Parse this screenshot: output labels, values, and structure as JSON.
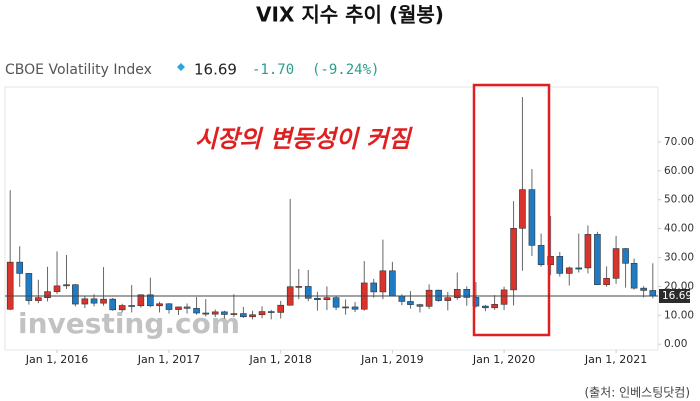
{
  "chart_data": {
    "type": "candlestick",
    "title": "VIX 지수 추이 (월봉)",
    "instrument": "CBOE Volatility Index",
    "price": "16.69",
    "change": "-1.70",
    "change_pct": "(-9.24%)",
    "annotation": "시장의 변동성이 커짐",
    "watermark": "investing.com",
    "source": "(출처: 인베스팅닷컴)",
    "last_value": 16.69,
    "up_color": "#d9342b",
    "down_color": "#1f7cc4",
    "x": [
      "2015-08-01",
      "2015-09-01",
      "2015-10-01",
      "2015-11-01",
      "2015-12-01",
      "2016-01-01",
      "2016-02-01",
      "2016-03-01",
      "2016-04-01",
      "2016-05-01",
      "2016-06-01",
      "2016-07-01",
      "2016-08-01",
      "2016-09-01",
      "2016-10-01",
      "2016-11-01",
      "2016-12-01",
      "2017-01-01",
      "2017-02-01",
      "2017-03-01",
      "2017-04-01",
      "2017-05-01",
      "2017-06-01",
      "2017-07-01",
      "2017-08-01",
      "2017-09-01",
      "2017-10-01",
      "2017-11-01",
      "2017-12-01",
      "2018-01-01",
      "2018-02-01",
      "2018-03-01",
      "2018-04-01",
      "2018-05-01",
      "2018-06-01",
      "2018-07-01",
      "2018-08-01",
      "2018-09-01",
      "2018-10-01",
      "2018-11-01",
      "2018-12-01",
      "2019-01-01",
      "2019-02-01",
      "2019-03-01",
      "2019-04-01",
      "2019-05-01",
      "2019-06-01",
      "2019-07-01",
      "2019-08-01",
      "2019-09-01",
      "2019-10-01",
      "2019-11-01",
      "2019-12-01",
      "2020-01-01",
      "2020-02-01",
      "2020-03-01",
      "2020-04-01",
      "2020-05-01",
      "2020-06-01",
      "2020-07-01",
      "2020-08-01",
      "2020-09-01",
      "2020-10-01",
      "2020-11-01",
      "2020-12-01",
      "2021-01-01",
      "2021-02-01",
      "2021-03-01",
      "2021-04-01",
      "2021-05-01"
    ],
    "open": [
      12.1,
      28.4,
      24.5,
      15.1,
      16.1,
      18.2,
      20.2,
      20.6,
      13.9,
      15.7,
      14.2,
      15.6,
      11.9,
      13.4,
      13.3,
      17.1,
      13.3,
      14.0,
      12.0,
      12.9,
      12.4,
      10.8,
      10.4,
      11.2,
      10.3,
      10.6,
      9.5,
      10.2,
      11.3,
      11.0,
      13.5,
      19.9,
      20.0,
      15.9,
      15.4,
      16.1,
      12.8,
      12.9,
      12.1,
      21.2,
      18.1,
      25.4,
      16.6,
      14.8,
      13.7,
      13.1,
      18.7,
      15.1,
      16.1,
      19.0,
      16.2,
      13.2,
      12.6,
      13.8,
      18.8,
      40.1,
      53.5,
      34.2,
      27.5,
      30.4,
      24.5,
      26.4,
      26.4,
      38.0,
      20.6,
      22.8,
      33.1,
      28.0,
      19.4,
      18.6
    ],
    "high": [
      53.3,
      33.9,
      24.6,
      22.3,
      26.8,
      32.1,
      30.9,
      20.8,
      16.6,
      17.3,
      26.7,
      16.0,
      14.0,
      20.5,
      17.3,
      23.0,
      14.7,
      14.2,
      13.0,
      14.1,
      16.3,
      15.6,
      12.0,
      11.6,
      17.3,
      12.9,
      11.6,
      13.1,
      11.9,
      15.0,
      50.3,
      26.0,
      25.7,
      18.1,
      20.0,
      16.8,
      15.5,
      14.6,
      28.8,
      22.6,
      36.2,
      28.5,
      17.3,
      18.4,
      14.0,
      20.7,
      18.9,
      18.1,
      24.8,
      20.0,
      21.5,
      13.6,
      17.0,
      19.9,
      49.5,
      85.5,
      60.6,
      38.3,
      44.4,
      31.9,
      26.9,
      38.3,
      41.1,
      38.9,
      26.9,
      37.5,
      33.3,
      29.6,
      20.1,
      28.0
    ],
    "low": [
      11.8,
      19.8,
      13.7,
      14.2,
      14.8,
      17.4,
      19.1,
      13.1,
      12.5,
      13.1,
      13.3,
      11.6,
      11.0,
      11.0,
      12.7,
      12.8,
      11.0,
      10.6,
      10.1,
      10.6,
      10.2,
      9.6,
      9.4,
      8.8,
      9.4,
      9.1,
      8.6,
      9.0,
      8.6,
      8.9,
      13.3,
      15.6,
      14.9,
      11.6,
      11.8,
      11.8,
      10.2,
      11.1,
      11.6,
      16.1,
      15.6,
      16.5,
      13.5,
      12.3,
      11.0,
      12.2,
      14.7,
      11.7,
      15.4,
      13.3,
      12.7,
      11.4,
      11.9,
      11.8,
      13.4,
      25.4,
      30.5,
      26.8,
      23.9,
      23.4,
      20.3,
      24.8,
      24.5,
      20.5,
      19.9,
      20.9,
      19.6,
      18.9,
      16.2,
      15.9
    ],
    "close": [
      28.4,
      24.5,
      15.1,
      16.1,
      18.2,
      20.2,
      20.6,
      13.9,
      15.7,
      14.2,
      15.6,
      11.9,
      13.4,
      13.3,
      17.1,
      13.3,
      14.0,
      12.0,
      12.9,
      12.4,
      10.8,
      10.4,
      11.2,
      10.3,
      10.6,
      9.5,
      10.2,
      11.3,
      11.0,
      13.5,
      19.9,
      20.0,
      15.9,
      15.4,
      16.1,
      12.8,
      12.9,
      12.1,
      21.2,
      18.1,
      25.4,
      16.6,
      14.8,
      13.7,
      13.1,
      18.7,
      15.1,
      16.1,
      19.0,
      16.2,
      13.2,
      12.6,
      13.8,
      18.8,
      40.1,
      53.5,
      34.2,
      27.5,
      30.4,
      24.5,
      26.4,
      26.0,
      38.0,
      20.6,
      22.8,
      33.1,
      28.0,
      19.4,
      18.6,
      16.69
    ],
    "ylim": [
      -2,
      89
    ],
    "yticks": [
      {
        "value": 0,
        "label": "0.00"
      },
      {
        "value": 10,
        "label": "10.00"
      },
      {
        "value": 20,
        "label": "20.00"
      },
      {
        "value": 30,
        "label": "30.00"
      },
      {
        "value": 40,
        "label": "40.00"
      },
      {
        "value": 50,
        "label": "50.00"
      },
      {
        "value": 60,
        "label": "60.00"
      },
      {
        "value": 70,
        "label": "70.00"
      }
    ],
    "xlim": [
      "2015-07-15",
      "2021-05-18"
    ],
    "xticks": [
      {
        "value": "2016-01-01",
        "label": "Jan 1, 2016"
      },
      {
        "value": "2017-01-01",
        "label": "Jan 1, 2017"
      },
      {
        "value": "2018-01-01",
        "label": "Jan 1, 2018"
      },
      {
        "value": "2019-01-01",
        "label": "Jan 1, 2019"
      },
      {
        "value": "2020-01-01",
        "label": "Jan 1, 2020"
      },
      {
        "value": "2021-01-01",
        "label": "Jan 1, 2021"
      }
    ]
  }
}
